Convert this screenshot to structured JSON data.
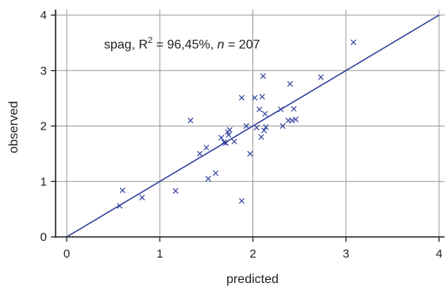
{
  "chart_data": {
    "type": "scatter",
    "xlabel": "predicted",
    "ylabel": "observed",
    "xlim": [
      0,
      4
    ],
    "ylim": [
      0,
      4
    ],
    "x_ticks": [
      "0",
      "1",
      "2",
      "3",
      "4"
    ],
    "y_ticks": [
      "0",
      "1",
      "2",
      "3",
      "4"
    ],
    "grid": true,
    "annotation": {
      "prefix": "spag, R",
      "superscript": "2",
      "middle": " = 96,45%, ",
      "n_symbol": "n",
      "suffix": " = 207"
    },
    "fit_line": {
      "x": [
        0,
        4
      ],
      "y": [
        0,
        4
      ]
    },
    "marker": "x",
    "colors": {
      "points": "#2b3a9a",
      "line": "#2b3a9a",
      "grid": "#9a9a9a",
      "axis": "#222222"
    },
    "points": [
      {
        "x": 0.57,
        "y": 0.56
      },
      {
        "x": 0.6,
        "y": 0.84
      },
      {
        "x": 0.81,
        "y": 0.71
      },
      {
        "x": 1.17,
        "y": 0.83
      },
      {
        "x": 1.33,
        "y": 2.1
      },
      {
        "x": 1.43,
        "y": 1.5
      },
      {
        "x": 1.5,
        "y": 1.61
      },
      {
        "x": 1.52,
        "y": 1.05
      },
      {
        "x": 1.6,
        "y": 1.15
      },
      {
        "x": 1.66,
        "y": 1.79
      },
      {
        "x": 1.69,
        "y": 1.71
      },
      {
        "x": 1.71,
        "y": 1.69
      },
      {
        "x": 1.73,
        "y": 1.89
      },
      {
        "x": 1.74,
        "y": 1.84
      },
      {
        "x": 1.75,
        "y": 1.93
      },
      {
        "x": 1.8,
        "y": 1.72
      },
      {
        "x": 1.88,
        "y": 2.51
      },
      {
        "x": 1.88,
        "y": 0.65
      },
      {
        "x": 1.93,
        "y": 2.0
      },
      {
        "x": 1.97,
        "y": 1.5
      },
      {
        "x": 2.02,
        "y": 2.51
      },
      {
        "x": 2.04,
        "y": 1.97
      },
      {
        "x": 2.07,
        "y": 2.3
      },
      {
        "x": 2.09,
        "y": 1.8
      },
      {
        "x": 2.1,
        "y": 2.53
      },
      {
        "x": 2.11,
        "y": 2.9
      },
      {
        "x": 2.12,
        "y": 1.92
      },
      {
        "x": 2.13,
        "y": 2.22
      },
      {
        "x": 2.14,
        "y": 1.98
      },
      {
        "x": 2.3,
        "y": 2.3
      },
      {
        "x": 2.32,
        "y": 2.0
      },
      {
        "x": 2.38,
        "y": 2.1
      },
      {
        "x": 2.4,
        "y": 2.76
      },
      {
        "x": 2.42,
        "y": 2.1
      },
      {
        "x": 2.44,
        "y": 2.31
      },
      {
        "x": 2.46,
        "y": 2.12
      },
      {
        "x": 2.73,
        "y": 2.88
      },
      {
        "x": 3.08,
        "y": 3.51
      }
    ]
  }
}
